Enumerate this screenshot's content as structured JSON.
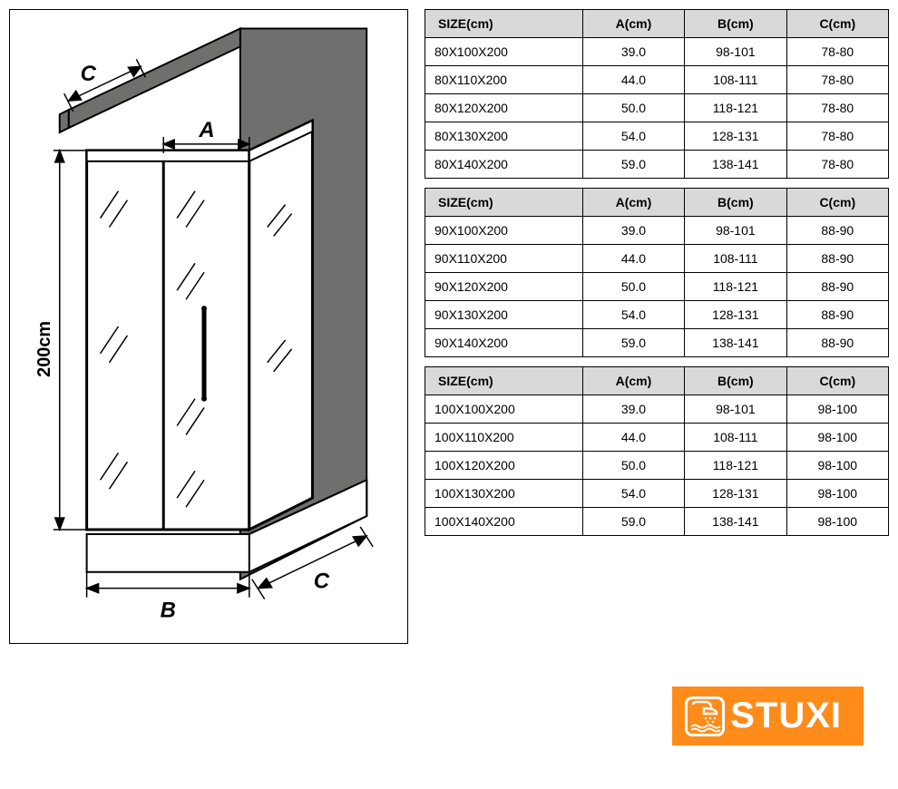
{
  "diagram": {
    "type": "infographic",
    "frame_border_color": "#000000",
    "background_color": "#ffffff",
    "wall_fill": "#6f706d",
    "panel_fill": "#ffffff",
    "line_color": "#000000",
    "line_width": 2,
    "labels": {
      "height": "200cm",
      "A": "A",
      "B": "B",
      "C_top": "C",
      "C_bottom": "C"
    },
    "label_fontsize": 22,
    "label_fontstyle": "italic"
  },
  "tables": {
    "header_bg": "#d9d9d9",
    "border_color": "#000000",
    "font_size": 14,
    "columns": [
      {
        "key": "size",
        "label": "SIZE(cm)"
      },
      {
        "key": "a",
        "label": "A(cm)"
      },
      {
        "key": "b",
        "label": "B(cm)"
      },
      {
        "key": "c",
        "label": "C(cm)"
      }
    ],
    "groups": [
      {
        "rows": [
          {
            "size": "80X100X200",
            "a": "39.0",
            "b": "98-101",
            "c": "78-80"
          },
          {
            "size": "80X110X200",
            "a": "44.0",
            "b": "108-111",
            "c": "78-80"
          },
          {
            "size": "80X120X200",
            "a": "50.0",
            "b": "118-121",
            "c": "78-80"
          },
          {
            "size": "80X130X200",
            "a": "54.0",
            "b": "128-131",
            "c": "78-80"
          },
          {
            "size": "80X140X200",
            "a": "59.0",
            "b": "138-141",
            "c": "78-80"
          }
        ]
      },
      {
        "rows": [
          {
            "size": "90X100X200",
            "a": "39.0",
            "b": "98-101",
            "c": "88-90"
          },
          {
            "size": "90X110X200",
            "a": "44.0",
            "b": "108-111",
            "c": "88-90"
          },
          {
            "size": "90X120X200",
            "a": "50.0",
            "b": "118-121",
            "c": "88-90"
          },
          {
            "size": "90X130X200",
            "a": "54.0",
            "b": "128-131",
            "c": "88-90"
          },
          {
            "size": "90X140X200",
            "a": "59.0",
            "b": "138-141",
            "c": "88-90"
          }
        ]
      },
      {
        "rows": [
          {
            "size": "100X100X200",
            "a": "39.0",
            "b": "98-101",
            "c": "98-100"
          },
          {
            "size": "100X110X200",
            "a": "44.0",
            "b": "108-111",
            "c": "98-100"
          },
          {
            "size": "100X120X200",
            "a": "50.0",
            "b": "118-121",
            "c": "98-100"
          },
          {
            "size": "100X130X200",
            "a": "54.0",
            "b": "128-131",
            "c": "98-100"
          },
          {
            "size": "100X140X200",
            "a": "59.0",
            "b": "138-141",
            "c": "98-100"
          }
        ]
      }
    ]
  },
  "logo": {
    "text": "STUXI",
    "bg_color": "#ff8c1a",
    "text_color": "#ffffff",
    "font_size": 40
  }
}
